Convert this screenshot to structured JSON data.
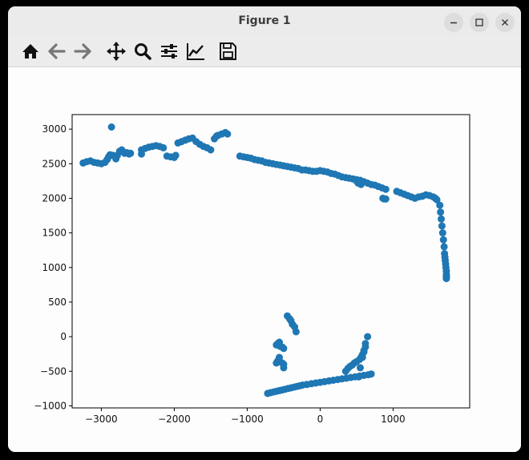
{
  "window": {
    "title": "Figure 1",
    "controls": [
      "minimize",
      "maximize",
      "close"
    ]
  },
  "toolbar": {
    "buttons": [
      "home-icon",
      "back-icon",
      "forward-icon",
      "pan-icon",
      "zoom-icon",
      "configure-subplots-icon",
      "edit-axis-icon",
      "save-icon"
    ]
  },
  "chart_data": {
    "type": "scatter",
    "title": "",
    "xlabel": "",
    "ylabel": "",
    "xlim": [
      -3400,
      2050
    ],
    "ylim": [
      -1030,
      3210
    ],
    "x_ticks": [
      "−3000",
      "−2000",
      "−1000",
      "0",
      "1000"
    ],
    "y_ticks": [
      "3000",
      "2500",
      "2000",
      "1500",
      "1000",
      "500",
      "0",
      "−500",
      "−1000"
    ],
    "series": [
      {
        "color": "#1f77b4",
        "x": [
          -3250,
          -3200,
          -3150,
          -3100,
          -3050,
          -3000,
          -2950,
          -2920,
          -2900,
          -2880,
          -2840,
          -2800,
          -2780,
          -2750,
          -2720,
          -2700,
          -2680,
          -2650,
          -2620,
          -2600,
          -2860,
          -2450,
          -2450,
          -2400,
          -2350,
          -2300,
          -2250,
          -2200,
          -2150,
          -2100,
          -2050,
          -2000,
          -1980,
          -1950,
          -1900,
          -1850,
          -1800,
          -1750,
          -1700,
          -1650,
          -1600,
          -1550,
          -1500,
          -1450,
          -1420,
          -1400,
          -1350,
          -1300,
          -1270,
          -1100,
          -1050,
          -1000,
          -950,
          -900,
          -850,
          -800,
          -750,
          -700,
          -650,
          -600,
          -550,
          -500,
          -450,
          -400,
          -350,
          -300,
          -250,
          -200,
          -150,
          -100,
          -50,
          0,
          50,
          100,
          150,
          200,
          250,
          300,
          350,
          400,
          450,
          500,
          550,
          600,
          650,
          700,
          750,
          800,
          850,
          900,
          500,
          520,
          560,
          860,
          880,
          900,
          1050,
          1100,
          1150,
          1200,
          1250,
          1300,
          1350,
          1400,
          1450,
          1500,
          1550,
          1580,
          1600,
          1640,
          1650,
          1660,
          1670,
          1680,
          1690,
          1700,
          1705,
          1710,
          1715,
          1720,
          1725,
          1730,
          1730,
          1730,
          1730,
          1730,
          1730,
          -450,
          -420,
          -400,
          -380,
          -350,
          -330,
          -600,
          -580,
          -560,
          -550,
          -520,
          -500,
          -560,
          -580,
          -600,
          -520,
          -500,
          -500,
          530,
          550,
          580,
          600,
          620,
          650,
          620,
          600,
          580,
          560,
          540,
          500,
          470,
          440,
          410,
          380,
          350,
          -720,
          -680,
          -640,
          -600,
          -560,
          -520,
          -480,
          -440,
          -400,
          -360,
          -320,
          -280,
          -240,
          -180,
          -120,
          -60,
          0,
          60,
          120,
          180,
          240,
          300,
          360,
          420,
          480,
          540,
          600,
          660,
          700
        ],
        "y": [
          2510,
          2530,
          2540,
          2520,
          2510,
          2500,
          2520,
          2560,
          2600,
          2630,
          2620,
          2570,
          2620,
          2680,
          2700,
          2670,
          2650,
          2660,
          2640,
          2650,
          3030,
          2640,
          2700,
          2720,
          2740,
          2750,
          2760,
          2750,
          2730,
          2610,
          2600,
          2590,
          2620,
          2800,
          2820,
          2840,
          2860,
          2870,
          2820,
          2780,
          2750,
          2730,
          2700,
          2860,
          2900,
          2910,
          2930,
          2950,
          2930,
          2610,
          2600,
          2590,
          2580,
          2560,
          2550,
          2540,
          2520,
          2510,
          2500,
          2490,
          2480,
          2470,
          2460,
          2450,
          2440,
          2430,
          2410,
          2410,
          2400,
          2390,
          2390,
          2400,
          2390,
          2380,
          2360,
          2350,
          2330,
          2310,
          2300,
          2290,
          2280,
          2270,
          2260,
          2240,
          2220,
          2200,
          2190,
          2170,
          2150,
          2130,
          2250,
          2220,
          2200,
          2000,
          1990,
          1990,
          2100,
          2080,
          2060,
          2040,
          2020,
          2000,
          2020,
          2030,
          2050,
          2040,
          2020,
          2000,
          1980,
          1900,
          1800,
          1700,
          1600,
          1500,
          1400,
          1300,
          1200,
          1150,
          1100,
          1050,
          1000,
          950,
          900,
          880,
          860,
          850,
          840,
          300,
          260,
          230,
          180,
          140,
          70,
          -120,
          -100,
          -80,
          -140,
          -150,
          -170,
          -300,
          -350,
          -380,
          -380,
          -400,
          -450,
          -580,
          -450,
          -300,
          -200,
          -100,
          0,
          -150,
          -220,
          -260,
          -300,
          -330,
          -360,
          -380,
          -410,
          -430,
          -460,
          -500,
          -820,
          -810,
          -800,
          -790,
          -780,
          -770,
          -760,
          -750,
          -740,
          -730,
          -720,
          -710,
          -700,
          -690,
          -680,
          -670,
          -660,
          -650,
          -640,
          -630,
          -620,
          -610,
          -600,
          -590,
          -580,
          -570,
          -560,
          -550,
          -540
        ]
      }
    ]
  }
}
